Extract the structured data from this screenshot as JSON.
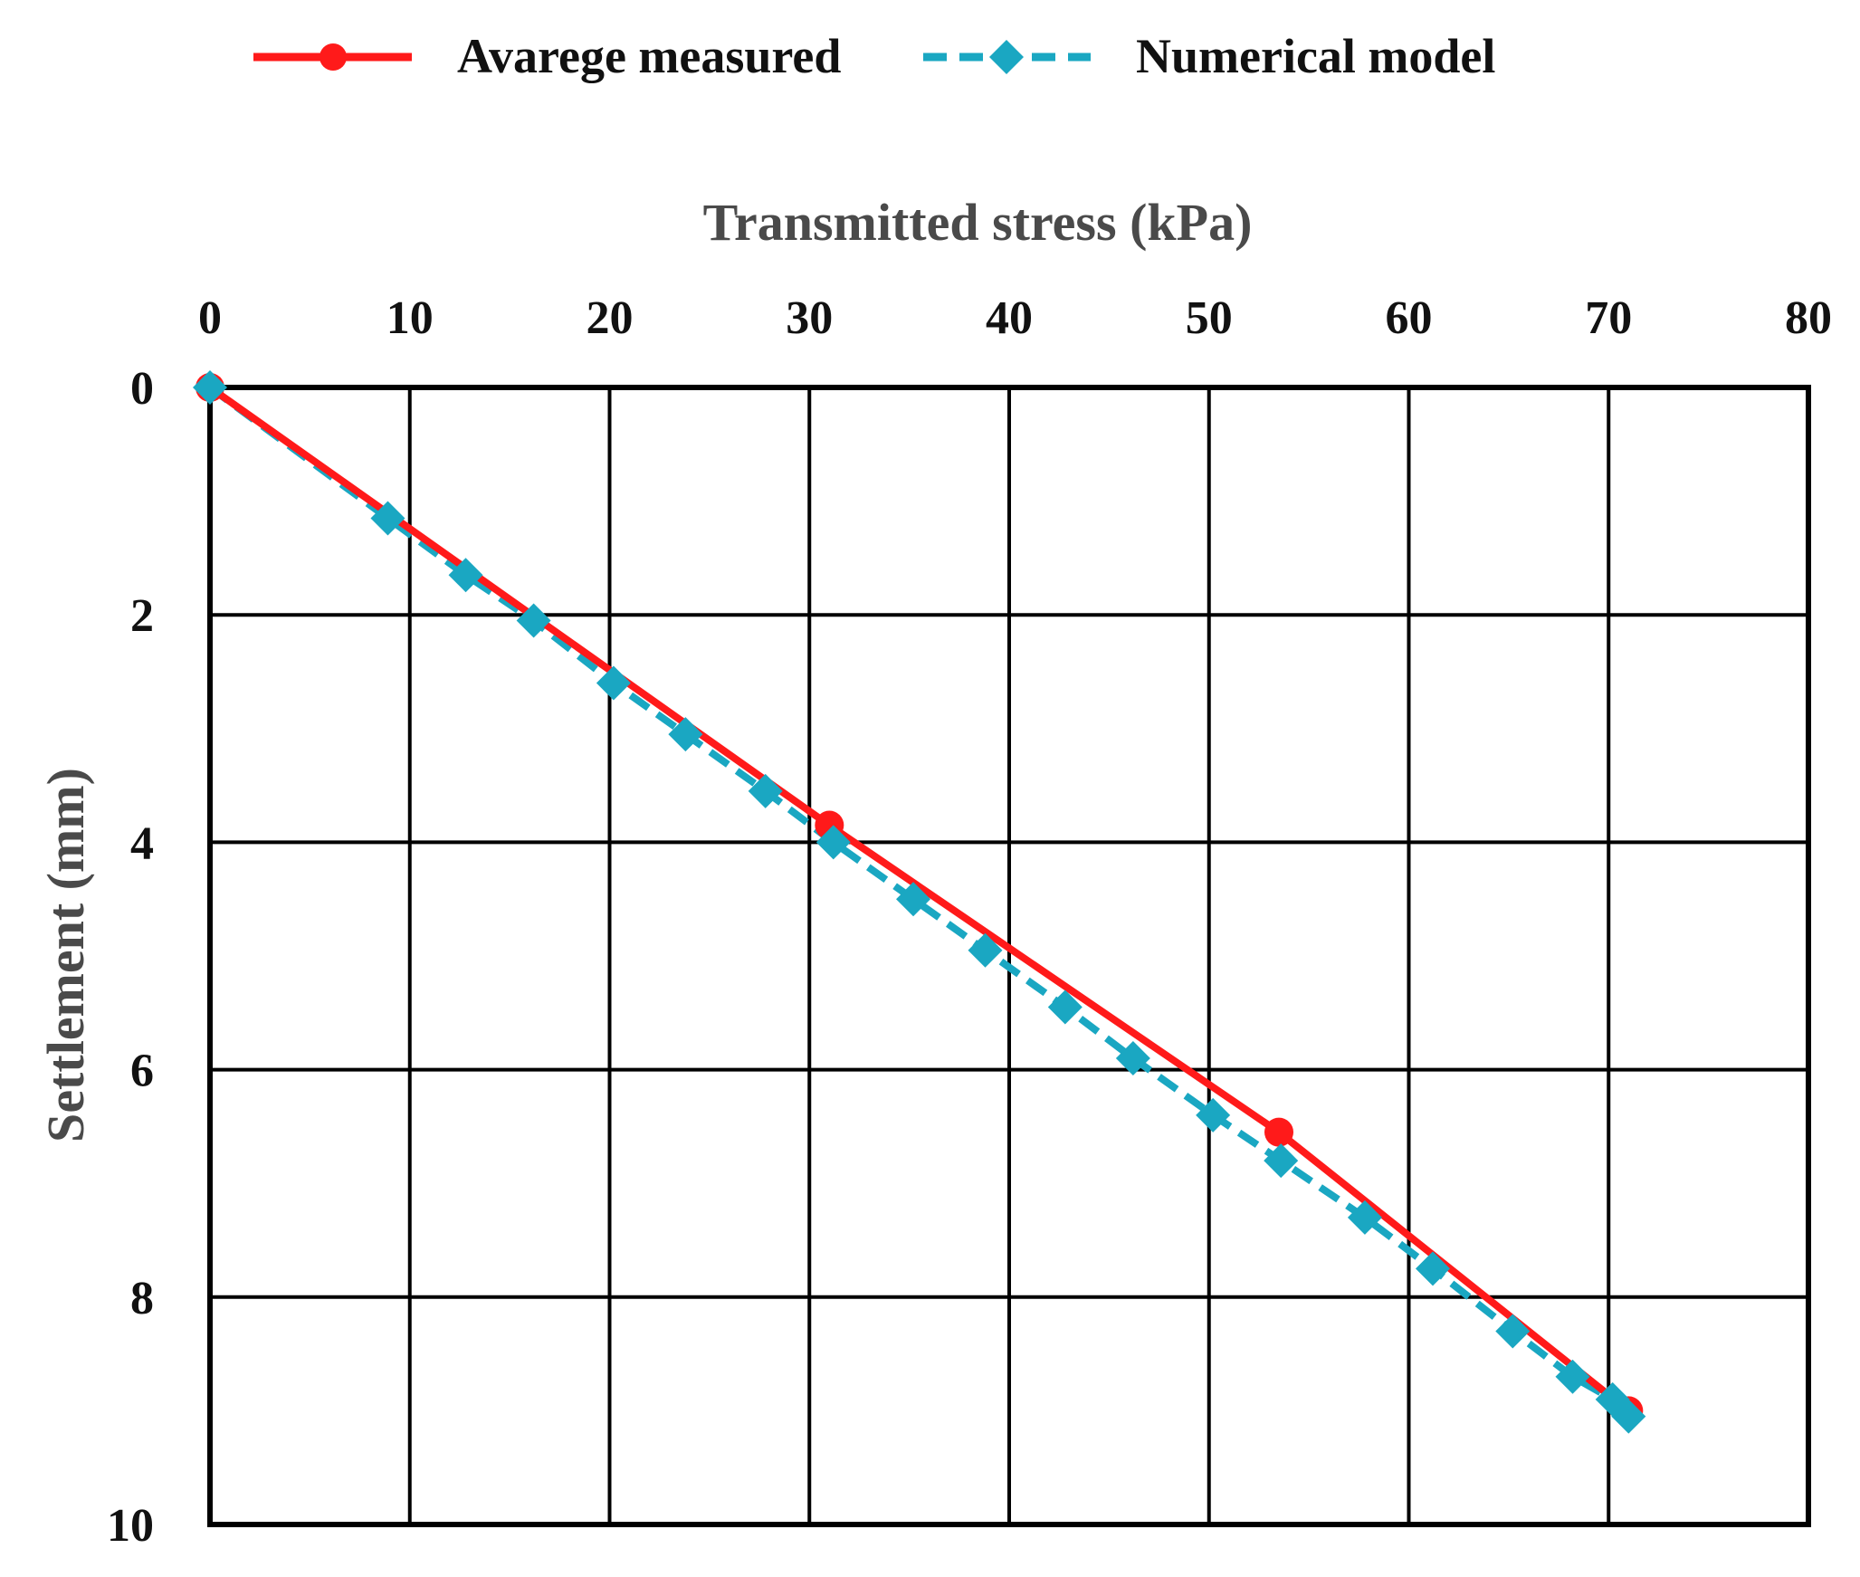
{
  "chart_data": {
    "type": "line",
    "title": "",
    "xlabel": "Transmitted stress (kPa)",
    "ylabel": "Settlement (mm)",
    "x_axis_position": "top",
    "y_axis_inverted": true,
    "xlim": [
      0,
      80
    ],
    "ylim": [
      0,
      10
    ],
    "x_ticks": [
      "0",
      "10",
      "20",
      "30",
      "40",
      "50",
      "60",
      "70",
      "80"
    ],
    "y_ticks": [
      "0",
      "2",
      "4",
      "6",
      "8",
      "10"
    ],
    "grid": true,
    "legend_position": "top",
    "series": [
      {
        "name": "Avarege measured",
        "color": "#ff1a1a",
        "line_style": "solid",
        "marker": "circle",
        "points": [
          [
            0,
            0
          ],
          [
            31,
            3.85
          ],
          [
            53.5,
            6.55
          ],
          [
            71,
            9.0
          ]
        ]
      },
      {
        "name": "Numerical model",
        "color": "#1aa7c2",
        "line_style": "dashed",
        "marker": "diamond",
        "points": [
          [
            0,
            0
          ],
          [
            8.9,
            1.15
          ],
          [
            12.8,
            1.65
          ],
          [
            16.2,
            2.05
          ],
          [
            20.2,
            2.6
          ],
          [
            23.8,
            3.05
          ],
          [
            27.8,
            3.55
          ],
          [
            31.2,
            4.0
          ],
          [
            35.2,
            4.5
          ],
          [
            38.8,
            4.95
          ],
          [
            42.8,
            5.45
          ],
          [
            46.2,
            5.9
          ],
          [
            50.2,
            6.4
          ],
          [
            53.6,
            6.8
          ],
          [
            57.8,
            7.3
          ],
          [
            61.2,
            7.75
          ],
          [
            65.2,
            8.3
          ],
          [
            68.2,
            8.7
          ],
          [
            70.2,
            8.9
          ],
          [
            71.0,
            9.05
          ]
        ]
      }
    ]
  }
}
